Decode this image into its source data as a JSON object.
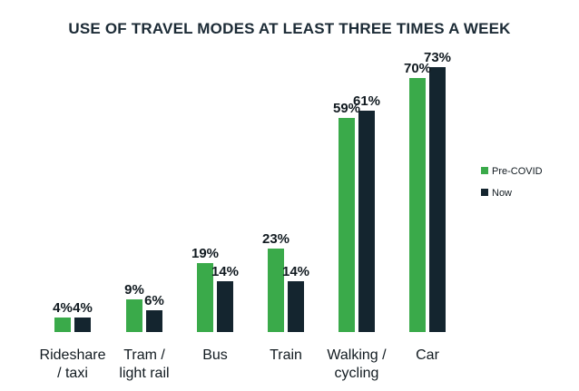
{
  "chart_data": {
    "type": "bar",
    "title": "USE OF TRAVEL MODES AT LEAST THREE TIMES A WEEK",
    "xlabel": "",
    "ylabel": "",
    "ylim": [
      0,
      80
    ],
    "grid": false,
    "legend_position": "right",
    "categories": [
      [
        "Rideshare",
        "/ taxi"
      ],
      [
        "Tram /",
        "light rail"
      ],
      [
        "Bus"
      ],
      [
        "Train"
      ],
      [
        "Walking /",
        "cycling"
      ],
      [
        "Car"
      ]
    ],
    "series": [
      {
        "name": "Pre-COVID",
        "color": "#3aaa4a",
        "values": [
          4,
          9,
          19,
          23,
          59,
          70
        ],
        "labels": [
          "4%",
          "9%",
          "19%",
          "23%",
          "59%",
          "70%"
        ]
      },
      {
        "name": "Now",
        "color": "#14252f",
        "values": [
          4,
          6,
          14,
          14,
          61,
          73
        ],
        "labels": [
          "4%",
          "6%",
          "14%",
          "14%",
          "61%",
          "73%"
        ]
      }
    ],
    "colors": {
      "title": "#1c2b36",
      "text": "#111a20"
    }
  }
}
